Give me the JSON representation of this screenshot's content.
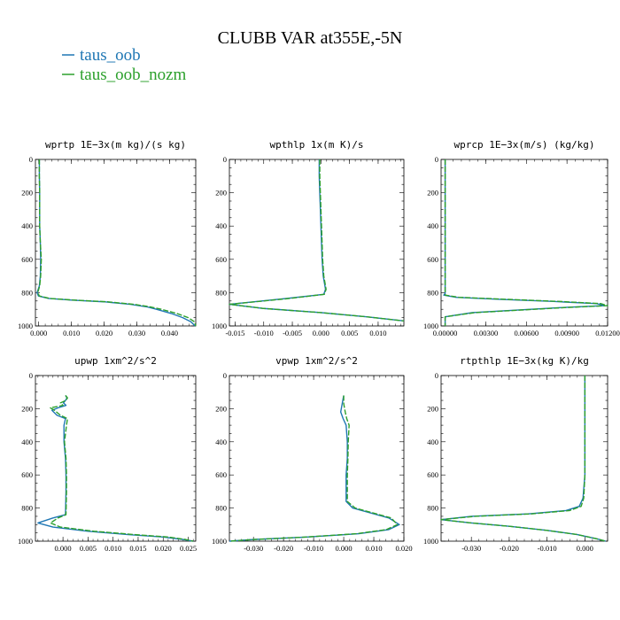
{
  "figure": {
    "title": "CLUBB VAR at355E,-5N",
    "legend": [
      {
        "label": "taus_oob",
        "color": "#1f77b4"
      },
      {
        "label": "taus_oob_nozm",
        "color": "#2ca02c"
      }
    ]
  },
  "chart_data": [
    {
      "type": "line",
      "title": "wprtp   1E−3x(m kg)/(s kg)",
      "xlim": [
        -0.001,
        0.048
      ],
      "ylim": [
        1000,
        0
      ],
      "xticks": [
        0.0,
        0.01,
        0.02,
        0.03,
        0.04
      ],
      "xtick_labels": [
        "0.000",
        "0.010",
        "0.020",
        "0.030",
        "0.040"
      ],
      "yticks": [
        0,
        200,
        400,
        600,
        800,
        1000
      ],
      "ytick_labels": [
        "0",
        "200",
        "400",
        "600",
        "800",
        "1000"
      ],
      "series": [
        {
          "name": "taus_oob",
          "color": "#1f77b4",
          "x": [
            0.0002,
            0.0002,
            0.0003,
            0.0003,
            0.0003,
            0.0005,
            0.0006,
            0.0005,
            0.0002,
            -0.0005,
            -0.0001,
            0.003,
            0.01,
            0.02,
            0.028,
            0.033,
            0.036,
            0.0405,
            0.044,
            0.0465,
            0.0478
          ],
          "y": [
            0,
            100,
            200,
            300,
            400,
            500,
            600,
            700,
            760,
            800,
            820,
            835,
            845,
            855,
            870,
            885,
            900,
            925,
            950,
            975,
            1000
          ]
        },
        {
          "name": "taus_oob_nozm",
          "color": "#2ca02c",
          "x": [
            0.0002,
            0.0002,
            0.0003,
            0.0003,
            0.0003,
            0.0005,
            0.0008,
            0.0006,
            0.0003,
            -0.0003,
            0.0002,
            0.0035,
            0.011,
            0.021,
            0.029,
            0.034,
            0.0375,
            0.0422,
            0.0457,
            0.0476,
            0.048
          ],
          "y": [
            0,
            100,
            200,
            300,
            400,
            500,
            600,
            700,
            760,
            800,
            820,
            835,
            845,
            855,
            870,
            885,
            900,
            925,
            950,
            975,
            1000
          ]
        }
      ]
    },
    {
      "type": "line",
      "title": "wpthlp   1x(m K)/s",
      "xlim": [
        -0.016,
        0.0145
      ],
      "ylim": [
        1000,
        0
      ],
      "xticks": [
        -0.015,
        -0.01,
        -0.005,
        0.0,
        0.005,
        0.01
      ],
      "xtick_labels": [
        "-0.015",
        "-0.010",
        "-0.005",
        "0.000",
        "0.005",
        "0.010"
      ],
      "yticks": [
        0,
        200,
        400,
        600,
        800,
        1000
      ],
      "ytick_labels": [
        "0",
        "200",
        "400",
        "600",
        "800",
        "1000"
      ],
      "series": [
        {
          "name": "taus_oob",
          "color": "#1f77b4",
          "x": [
            -0.0003,
            -0.0003,
            -0.0002,
            -0.0001,
            0.0,
            0.0001,
            0.0002,
            0.0004,
            0.0008,
            0.0005,
            -0.006,
            -0.016,
            -0.01,
            0.0,
            0.008,
            0.0145
          ],
          "y": [
            0,
            100,
            200,
            300,
            400,
            500,
            600,
            700,
            780,
            810,
            835,
            870,
            895,
            920,
            945,
            970
          ]
        },
        {
          "name": "taus_oob_nozm",
          "color": "#2ca02c",
          "x": [
            -0.0002,
            -0.0002,
            -0.0001,
            0.0,
            0.0001,
            0.0002,
            0.0003,
            0.0005,
            0.0009,
            0.0006,
            -0.0055,
            -0.016,
            -0.01,
            0.0,
            0.008,
            0.0145
          ],
          "y": [
            0,
            100,
            200,
            300,
            400,
            500,
            600,
            700,
            780,
            810,
            835,
            870,
            895,
            920,
            945,
            970
          ]
        }
      ]
    },
    {
      "type": "line",
      "title": "wprcp   1E−3x(m/s) (kg/kg)",
      "xlim": [
        -0.0003,
        0.012
      ],
      "ylim": [
        1000,
        0
      ],
      "xticks": [
        0.0,
        0.003,
        0.006,
        0.009,
        0.012
      ],
      "xtick_labels": [
        "0.00000",
        "0.00300",
        "0.00600",
        "0.00900",
        "0.01200"
      ],
      "yticks": [
        0,
        200,
        400,
        600,
        800,
        1000
      ],
      "ytick_labels": [
        "0",
        "200",
        "400",
        "600",
        "800",
        "1000"
      ],
      "series": [
        {
          "name": "taus_oob",
          "color": "#1f77b4",
          "x": [
            0.0,
            0.0,
            0.0,
            0.0,
            0.0,
            0.0,
            0.0,
            0.0,
            -0.0001,
            0.0008,
            0.004,
            0.008,
            0.0112,
            0.0118,
            0.0085,
            0.002,
            0.0,
            0.0
          ],
          "y": [
            0,
            200,
            400,
            600,
            700,
            760,
            790,
            805,
            815,
            828,
            840,
            853,
            866,
            878,
            890,
            920,
            945,
            1000
          ]
        },
        {
          "name": "taus_oob_nozm",
          "color": "#2ca02c",
          "x": [
            0.0,
            0.0,
            0.0,
            0.0,
            0.0,
            0.0,
            0.0,
            0.0,
            0.0,
            0.001,
            0.0045,
            0.0085,
            0.0115,
            0.012,
            0.0088,
            0.0022,
            0.0,
            0.0
          ],
          "y": [
            0,
            200,
            400,
            600,
            700,
            760,
            790,
            805,
            815,
            828,
            840,
            853,
            866,
            878,
            890,
            920,
            945,
            1000
          ]
        }
      ]
    },
    {
      "type": "line",
      "title": "upwp   1xm^2/s^2",
      "xlim": [
        -0.0055,
        0.0265
      ],
      "ylim": [
        1000,
        0
      ],
      "xticks": [
        0.0,
        0.005,
        0.01,
        0.015,
        0.02,
        0.025
      ],
      "xtick_labels": [
        "0.000",
        "0.005",
        "0.010",
        "0.015",
        "0.020",
        "0.025"
      ],
      "yticks": [
        0,
        200,
        400,
        600,
        800,
        1000
      ],
      "ytick_labels": [
        "0",
        "200",
        "400",
        "600",
        "800",
        "1000"
      ],
      "series": [
        {
          "name": "taus_oob",
          "color": "#1f77b4",
          "x": [
            0.0005,
            0.0008,
            0.0005,
            0.0001,
            0.0006,
            -0.001,
            -0.0022,
            -0.0012,
            0.0005,
            0.0002,
            0.0002,
            0.0005,
            0.0006,
            0.0006,
            0.0005,
            -0.002,
            -0.005,
            -0.002,
            0.005,
            0.013,
            0.02,
            0.024,
            0.026
          ],
          "y": [
            120,
            135,
            150,
            165,
            180,
            195,
            210,
            240,
            260,
            300,
            400,
            500,
            600,
            700,
            840,
            860,
            890,
            915,
            940,
            960,
            975,
            990,
            1000
          ]
        },
        {
          "name": "taus_oob_nozm",
          "color": "#2ca02c",
          "x": [
            0.0005,
            0.0009,
            0.0006,
            -0.0005,
            0.0,
            -0.0025,
            -0.0017,
            -0.0005,
            0.0009,
            0.0007,
            0.0003,
            0.0006,
            0.0007,
            0.0007,
            0.0006,
            -0.001,
            -0.0025,
            -0.0005,
            0.0062,
            0.0142,
            0.021,
            0.0245,
            0.026
          ],
          "y": [
            120,
            135,
            150,
            165,
            180,
            195,
            210,
            240,
            260,
            300,
            400,
            500,
            600,
            700,
            840,
            860,
            890,
            915,
            940,
            960,
            975,
            990,
            1000
          ]
        }
      ]
    },
    {
      "type": "line",
      "title": "vpwp   1xm^2/s^2",
      "xlim": [
        -0.038,
        0.02
      ],
      "ylim": [
        1000,
        0
      ],
      "xticks": [
        -0.03,
        -0.02,
        -0.01,
        0.0,
        0.01,
        0.02
      ],
      "xtick_labels": [
        "-0.030",
        "-0.020",
        "-0.010",
        "0.000",
        "0.010",
        "0.020"
      ],
      "yticks": [
        0,
        200,
        400,
        600,
        800,
        1000
      ],
      "ytick_labels": [
        "0",
        "200",
        "400",
        "600",
        "800",
        "1000"
      ],
      "series": [
        {
          "name": "taus_oob",
          "color": "#1f77b4",
          "x": [
            0.0,
            -0.0005,
            -0.001,
            -0.0002,
            0.0008,
            0.0012,
            0.0012,
            0.0008,
            0.0008,
            0.003,
            0.009,
            0.015,
            0.0185,
            0.015,
            0.005,
            -0.012,
            -0.03,
            -0.038
          ],
          "y": [
            120,
            170,
            220,
            260,
            300,
            400,
            500,
            600,
            760,
            800,
            830,
            860,
            900,
            930,
            955,
            975,
            990,
            1000
          ]
        },
        {
          "name": "taus_oob_nozm",
          "color": "#2ca02c",
          "x": [
            0.0,
            0.0,
            0.0005,
            0.001,
            0.0018,
            0.0015,
            0.0014,
            0.0012,
            0.0012,
            0.0038,
            0.0098,
            0.0158,
            0.0178,
            0.0142,
            0.0042,
            -0.0125,
            -0.03,
            -0.038
          ],
          "y": [
            120,
            170,
            220,
            260,
            300,
            400,
            500,
            600,
            760,
            800,
            830,
            860,
            900,
            930,
            955,
            975,
            990,
            1000
          ]
        }
      ]
    },
    {
      "type": "line",
      "title": "rtpthlp   1E−3x(kg K)/kg",
      "xlim": [
        -0.038,
        0.006
      ],
      "ylim": [
        1000,
        0
      ],
      "xticks": [
        -0.03,
        -0.02,
        -0.01,
        0.0
      ],
      "xtick_labels": [
        "-0.030",
        "-0.020",
        "-0.010",
        "0.000"
      ],
      "yticks": [
        0,
        200,
        400,
        600,
        800,
        1000
      ],
      "ytick_labels": [
        "0",
        "200",
        "400",
        "600",
        "800",
        "1000"
      ],
      "series": [
        {
          "name": "taus_oob",
          "color": "#1f77b4",
          "x": [
            0.0,
            0.0,
            0.0,
            0.0,
            -0.0005,
            -0.0015,
            -0.005,
            -0.015,
            -0.03,
            -0.038,
            -0.03,
            -0.02,
            -0.01,
            -0.002,
            0.003,
            0.0055
          ],
          "y": [
            0,
            200,
            400,
            600,
            740,
            790,
            815,
            835,
            850,
            870,
            890,
            910,
            935,
            960,
            985,
            1000
          ]
        },
        {
          "name": "taus_oob_nozm",
          "color": "#2ca02c",
          "x": [
            0.0,
            0.0,
            0.0,
            0.0,
            -0.0003,
            -0.001,
            -0.004,
            -0.014,
            -0.029,
            -0.038,
            -0.03,
            -0.02,
            -0.01,
            -0.002,
            0.003,
            0.0055
          ],
          "y": [
            0,
            200,
            400,
            600,
            740,
            790,
            815,
            835,
            850,
            870,
            890,
            910,
            935,
            960,
            985,
            1000
          ]
        }
      ]
    }
  ]
}
